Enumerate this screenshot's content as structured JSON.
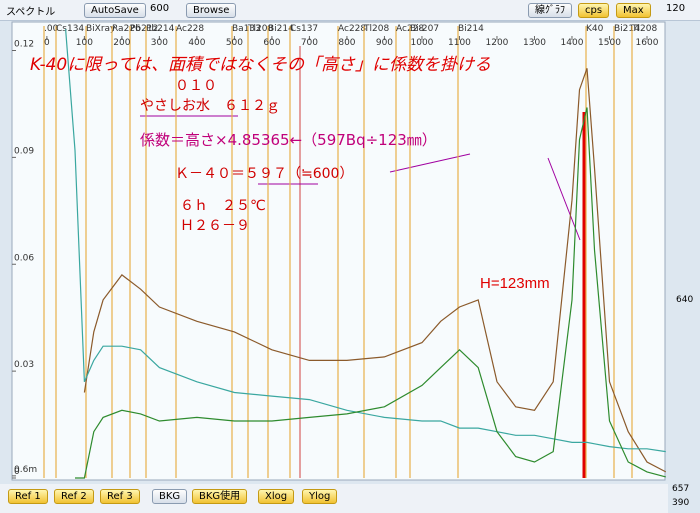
{
  "toolbar": {
    "title": "スペクトル",
    "autosave": "AutoSave",
    "interval": "600",
    "browse": "Browse",
    "line_graph": "線ｸﾞﾗﾌ",
    "cps": "cps",
    "max": "Max",
    "max_value": "120"
  },
  "right_panel": {
    "upper": "640",
    "lower1": "657",
    "lower2": "390"
  },
  "bottom_buttons": [
    "Ref 1",
    "Ref 2",
    "Ref 3",
    "BKG",
    "BKG使用",
    "Xlog",
    "Ylog"
  ],
  "chart_data": {
    "type": "line",
    "x": [
      50,
      75,
      100,
      125,
      150,
      200,
      250,
      300,
      400,
      500,
      600,
      700,
      800,
      900,
      1000,
      1050,
      1100,
      1150,
      1200,
      1250,
      1300,
      1350,
      1400,
      1420,
      1440,
      1460,
      1500,
      1550,
      1600,
      1650
    ],
    "series": [
      {
        "color": "#8b5a2b",
        "values": [
          null,
          null,
          0.024,
          0.041,
          0.05,
          0.057,
          0.053,
          0.048,
          0.044,
          0.041,
          0.036,
          0.033,
          0.033,
          0.034,
          0.038,
          0.044,
          0.048,
          0.05,
          0.027,
          0.02,
          0.019,
          0.027,
          0.078,
          0.109,
          0.115,
          0.087,
          0.027,
          0.013,
          0.0045,
          0.0017
        ]
      },
      {
        "color": "#3aa7a0",
        "values": [
          0.126,
          0.092,
          0.027,
          0.033,
          0.037,
          0.037,
          0.036,
          0.031,
          0.027,
          0.024,
          0.023,
          0.022,
          0.019,
          0.017,
          0.016,
          0.016,
          0.014,
          0.014,
          0.013,
          0.012,
          0.012,
          0.011,
          0.01,
          0.01,
          0.01,
          0.0096,
          0.0088,
          0.0082,
          0.0082,
          0.0074
        ]
      },
      {
        "color": "#2e8b2e",
        "values": [
          null,
          0,
          0,
          0.013,
          0.017,
          0.019,
          0.018,
          0.016,
          0.017,
          0.016,
          0.016,
          0.017,
          0.018,
          0.02,
          0.026,
          0.031,
          0.036,
          0.031,
          0.013,
          0.006,
          0.0045,
          0.0074,
          0.05,
          0.095,
          0.104,
          0.064,
          0.016,
          0.0045,
          0.0017,
          0.0003
        ]
      }
    ],
    "xlim": [
      -93,
      1648
    ],
    "xticks": [
      0,
      100,
      200,
      300,
      400,
      500,
      600,
      700,
      800,
      900,
      1000,
      1100,
      1200,
      1300,
      1400,
      1500,
      1600
    ],
    "ylim": [
      0,
      0.128
    ],
    "yticks": [
      0,
      {
        "value": 0.0006,
        "label": "0.6m"
      },
      0.03,
      0.06,
      0.09,
      0.12
    ],
    "nuclides": [
      ".00",
      "Cs134",
      "BiXray",
      "Ra226",
      "Pb212",
      "Pb214",
      "Ac228",
      "Ba133",
      "Tl208",
      "Bi214",
      "Cs137",
      "Ac228",
      "Tl208",
      "Ac228",
      "Bi-207",
      "Bi214",
      "K40",
      "Bi214",
      "Tl208"
    ],
    "annotations": [
      "K-40に限っては、面積ではなくその「高さ」に係数を掛ける",
      "０１０",
      "やさしお水　６１２ｇ",
      "係数＝高さ×4.85365←（597Bq÷123㎜）",
      "Ｋ－４０＝５９７（≒600）",
      "６ｈ　２５℃",
      "Ｈ２６－９",
      "H=123mm"
    ]
  }
}
